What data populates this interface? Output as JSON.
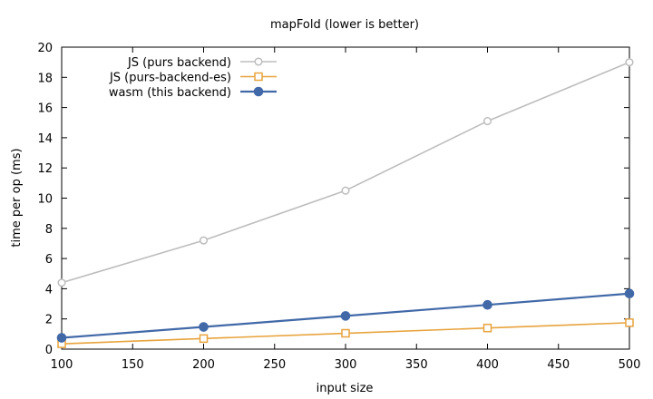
{
  "chart_data": {
    "type": "line",
    "title": "mapFold   (lower is better)",
    "xlabel": "input size",
    "ylabel": "time per op (ms)",
    "xlim": [
      100,
      500
    ],
    "ylim": [
      0,
      20
    ],
    "xticks": [
      100,
      150,
      200,
      250,
      300,
      350,
      400,
      450,
      500
    ],
    "yticks": [
      0,
      2,
      4,
      6,
      8,
      10,
      12,
      14,
      16,
      18,
      20
    ],
    "grid": false,
    "legend_position": "top-left",
    "series": [
      {
        "name": "JS (purs backend)",
        "color": "#bdbdbd",
        "marker": "open-circle",
        "x": [
          100,
          200,
          300,
          400,
          500
        ],
        "y": [
          4.4,
          7.2,
          10.5,
          15.1,
          19.0
        ]
      },
      {
        "name": "JS (purs-backend-es)",
        "color": "#e8a33d",
        "marker": "open-square",
        "x": [
          100,
          200,
          300,
          400,
          500
        ],
        "y": [
          0.35,
          0.7,
          1.05,
          1.4,
          1.75
        ]
      },
      {
        "name": "wasm (this backend)",
        "color": "#4169a8",
        "marker": "filled-circle",
        "x": [
          100,
          200,
          300,
          400,
          500
        ],
        "y": [
          0.75,
          1.47,
          2.2,
          2.93,
          3.68
        ]
      }
    ]
  }
}
